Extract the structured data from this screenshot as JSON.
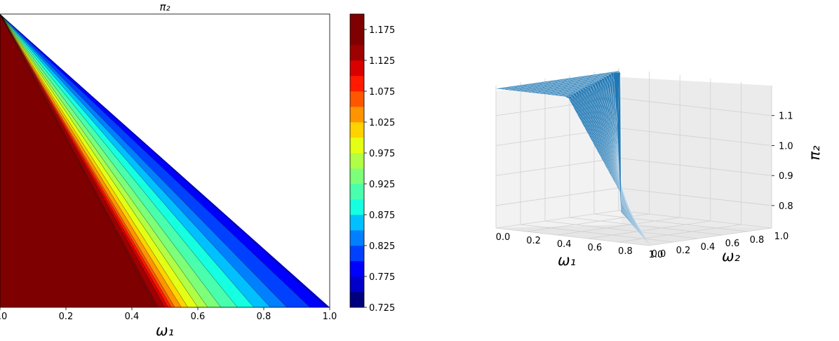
{
  "chart_data": [
    {
      "type": "contour",
      "title": "π₂",
      "xlabel": "ω₁",
      "ylabel": "",
      "xlim": [
        0.0,
        1.0
      ],
      "ylim": [
        0.0,
        1.0
      ],
      "x_ticks": [
        "0.0",
        "0.2",
        "0.4",
        "0.6",
        "0.8",
        "1.0"
      ],
      "colormap": "jet",
      "domain": "ω₁ + ω₂ ≤ 1",
      "level_step": 0.025,
      "zero_contour_along_axis": [
        0.47,
        0.48,
        0.5,
        0.51,
        0.52,
        0.53,
        0.55,
        0.57,
        0.6,
        0.63,
        0.67,
        0.72,
        0.77,
        0.82,
        0.87,
        0.94,
        0.99
      ],
      "contour_level_values": [
        1.175,
        1.15,
        1.125,
        1.1,
        1.075,
        1.05,
        1.025,
        1.0,
        0.975,
        0.95,
        0.925,
        0.9,
        0.875,
        0.85,
        0.825,
        0.8,
        0.775
      ],
      "colorbar": {
        "min": 0.725,
        "max": 1.2,
        "tick_labels": [
          "1.175",
          "1.125",
          "1.075",
          "1.025",
          "0.975",
          "0.925",
          "0.875",
          "0.825",
          "0.775",
          "0.725"
        ],
        "tick_values": [
          1.175,
          1.125,
          1.075,
          1.025,
          0.975,
          0.925,
          0.875,
          0.825,
          0.775,
          0.725
        ],
        "band_colors": [
          "#00007f",
          "#0000c8",
          "#0000ff",
          "#0040ff",
          "#0080ff",
          "#00c0ff",
          "#15ffe1",
          "#49ffad",
          "#7dff79",
          "#b0ff46",
          "#e4ff13",
          "#ffd200",
          "#ff9400",
          "#ff5700",
          "#ff1a00",
          "#d90000",
          "#9f0000",
          "#7f0000",
          "#7f0000"
        ]
      }
    },
    {
      "type": "surface3d",
      "title": "",
      "xlabel": "ω₁",
      "ylabel": "ω₂",
      "zlabel": "π₂",
      "x_ticks": [
        "0.0",
        "0.2",
        "0.4",
        "0.6",
        "0.8",
        "1.0"
      ],
      "y_ticks": [
        "0.0",
        "0.2",
        "0.4",
        "0.6",
        "0.8",
        "1.0"
      ],
      "z_ticks": [
        "0.8",
        "0.9",
        "1.0",
        "1.1"
      ],
      "zlim": [
        0.725,
        1.2
      ],
      "surface_color": "#1f77b4"
    }
  ]
}
